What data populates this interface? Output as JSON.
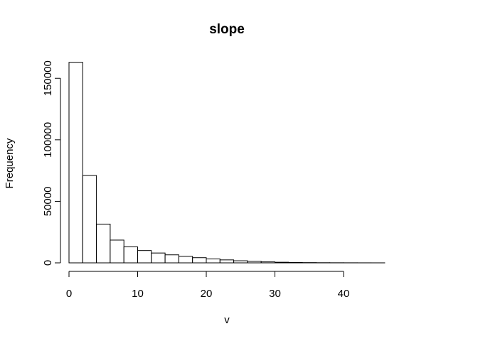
{
  "chart_data": {
    "type": "bar",
    "title": "slope",
    "xlabel": "v",
    "ylabel": "Frequency",
    "bin_width": 2,
    "bins": [
      {
        "start": 0,
        "end": 2,
        "count": 163000
      },
      {
        "start": 2,
        "end": 4,
        "count": 71000
      },
      {
        "start": 4,
        "end": 6,
        "count": 31500
      },
      {
        "start": 6,
        "end": 8,
        "count": 18500
      },
      {
        "start": 8,
        "end": 10,
        "count": 13000
      },
      {
        "start": 10,
        "end": 12,
        "count": 10000
      },
      {
        "start": 12,
        "end": 14,
        "count": 8000
      },
      {
        "start": 14,
        "end": 16,
        "count": 6500
      },
      {
        "start": 16,
        "end": 18,
        "count": 5300
      },
      {
        "start": 18,
        "end": 20,
        "count": 4200
      },
      {
        "start": 20,
        "end": 22,
        "count": 3200
      },
      {
        "start": 22,
        "end": 24,
        "count": 2400
      },
      {
        "start": 24,
        "end": 26,
        "count": 1700
      },
      {
        "start": 26,
        "end": 28,
        "count": 1200
      },
      {
        "start": 28,
        "end": 30,
        "count": 800
      },
      {
        "start": 30,
        "end": 32,
        "count": 500
      },
      {
        "start": 32,
        "end": 34,
        "count": 300
      },
      {
        "start": 34,
        "end": 36,
        "count": 200
      },
      {
        "start": 36,
        "end": 38,
        "count": 120
      },
      {
        "start": 38,
        "end": 40,
        "count": 80
      },
      {
        "start": 40,
        "end": 42,
        "count": 50
      },
      {
        "start": 42,
        "end": 44,
        "count": 30
      },
      {
        "start": 44,
        "end": 46,
        "count": 20
      }
    ],
    "x_ticks": [
      0,
      10,
      20,
      30,
      40
    ],
    "x_tick_labels": [
      "0",
      "10",
      "20",
      "30",
      "40"
    ],
    "y_ticks": [
      0,
      50000,
      100000,
      150000
    ],
    "y_tick_labels": [
      "0",
      "50000",
      "100000",
      "150000"
    ],
    "xlim": [
      0,
      46
    ],
    "ylim": [
      0,
      163000
    ],
    "grid": false,
    "colors": {
      "bar_fill": "#ffffff",
      "bar_stroke": "#000000"
    }
  }
}
